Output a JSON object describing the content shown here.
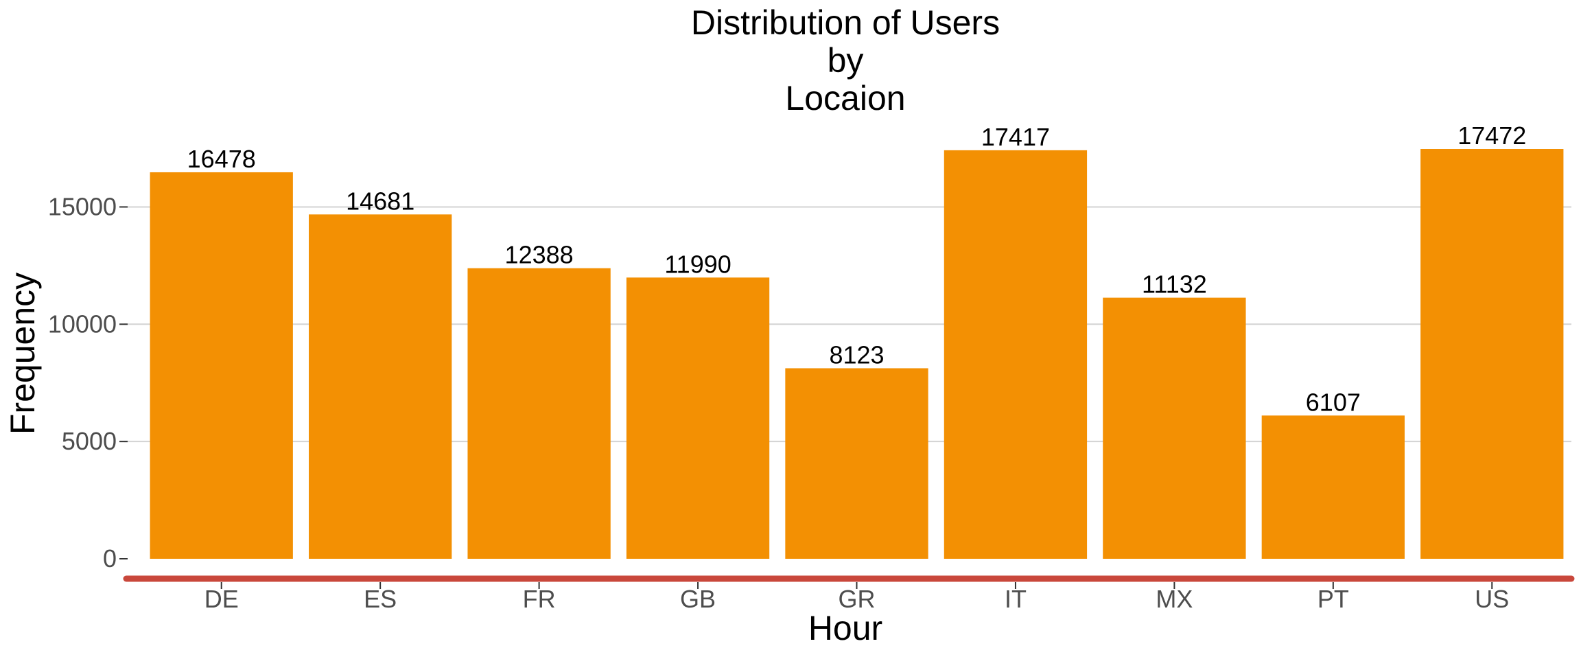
{
  "chart_data": {
    "type": "bar",
    "title_lines": [
      "Distribution of Users",
      "by",
      "Locaion"
    ],
    "xlabel": "Hour",
    "ylabel": "Frequency",
    "categories": [
      "DE",
      "ES",
      "FR",
      "GB",
      "GR",
      "IT",
      "MX",
      "PT",
      "US"
    ],
    "values": [
      16478,
      14681,
      12388,
      11990,
      8123,
      17417,
      11132,
      6107,
      17472
    ],
    "data_labels": [
      "16478",
      "14681",
      "12388",
      "11990",
      "8123",
      "17417",
      "11132",
      "6107",
      "17472"
    ],
    "yticks": [
      0,
      5000,
      10000,
      15000
    ],
    "ytick_labels": [
      "0",
      "5000",
      "10000",
      "15000"
    ],
    "ylim": [
      0,
      17472
    ],
    "grid": true,
    "legend": "none",
    "colors": {
      "bar": "#f39003",
      "baseline": "#c9473b",
      "grid": "#d3d3d3",
      "tick_text": "#4d4d4d"
    }
  }
}
